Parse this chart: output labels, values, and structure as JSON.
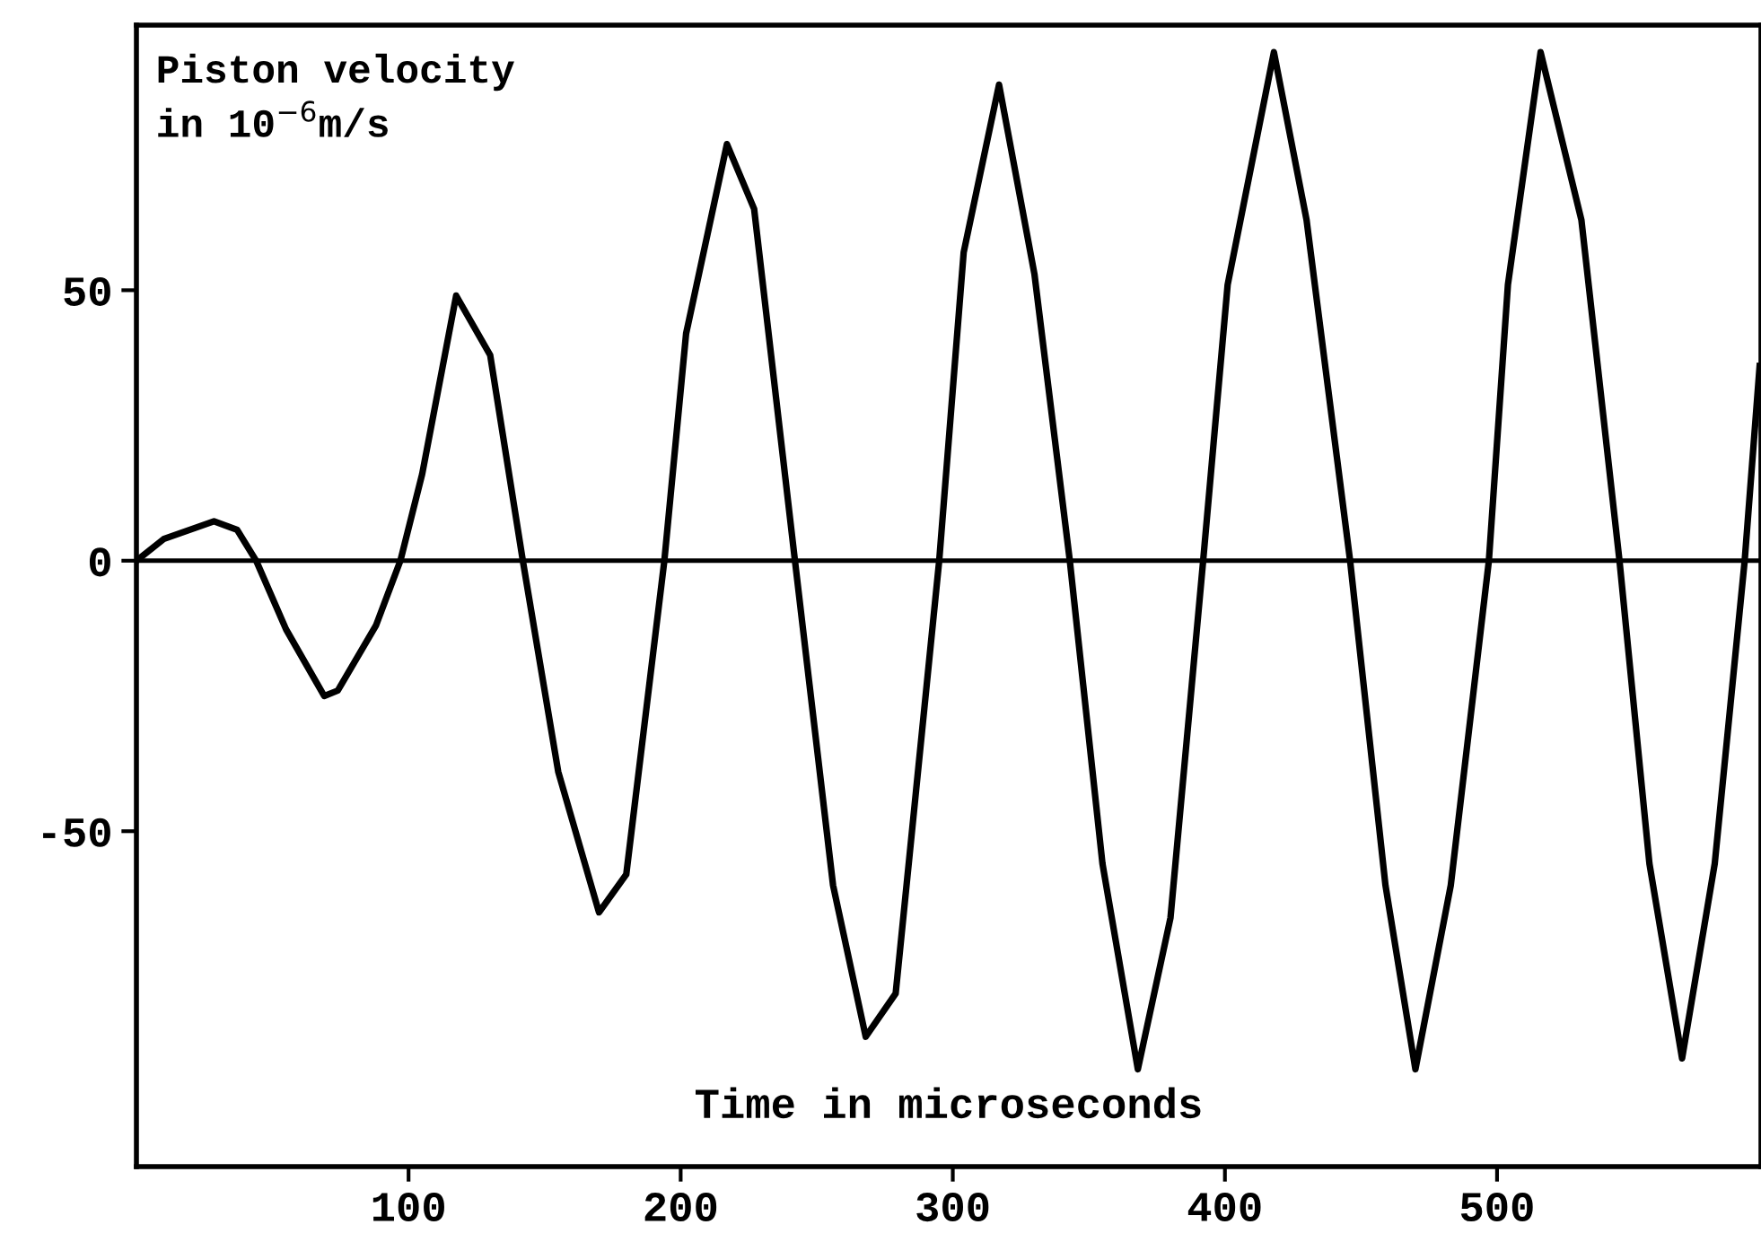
{
  "chart_data": {
    "type": "line",
    "xlabel": "Time in microseconds",
    "ylabel": "Piston velocity\nin 10$^{−6}$m/s",
    "x": [
      0,
      10,
      28.5,
      37,
      44,
      55,
      69,
      74,
      88,
      97,
      105,
      117.5,
      130,
      142,
      155,
      170,
      180,
      194,
      202,
      217,
      227,
      242,
      256,
      268,
      279,
      295,
      304,
      317,
      330,
      343,
      355,
      368,
      380,
      392,
      401,
      418,
      430,
      446,
      459,
      470,
      483,
      497,
      504,
      516,
      531,
      545,
      556,
      568,
      580,
      591,
      596.5
    ],
    "series": [
      {
        "color": "#000000",
        "values": [
          0,
          4,
          7.3,
          5.7,
          0,
          -12.7,
          -25,
          -24,
          -12,
          0,
          16,
          49,
          38,
          0,
          -39,
          -65,
          -58,
          0,
          42,
          77,
          65,
          0,
          -60,
          -88,
          -80,
          0,
          57,
          88,
          53,
          0,
          -56,
          -94,
          -66,
          0,
          51,
          94,
          63,
          0,
          -60,
          -94,
          -60,
          0,
          51,
          94,
          63,
          0,
          -56,
          -92,
          -56,
          0,
          36
        ]
      }
    ],
    "xlim": [
      0,
      597
    ],
    "ylim": [
      -112,
      99
    ],
    "xticks": [
      100,
      200,
      300,
      400,
      500
    ],
    "yticks": [
      {
        "value": -50,
        "label": "-50"
      },
      0,
      50
    ],
    "ref_lines": [
      {
        "axis": "y",
        "value": 0,
        "color": "#000000"
      }
    ],
    "grid": false,
    "legend": false,
    "marker": "none",
    "line_style": "solid"
  }
}
